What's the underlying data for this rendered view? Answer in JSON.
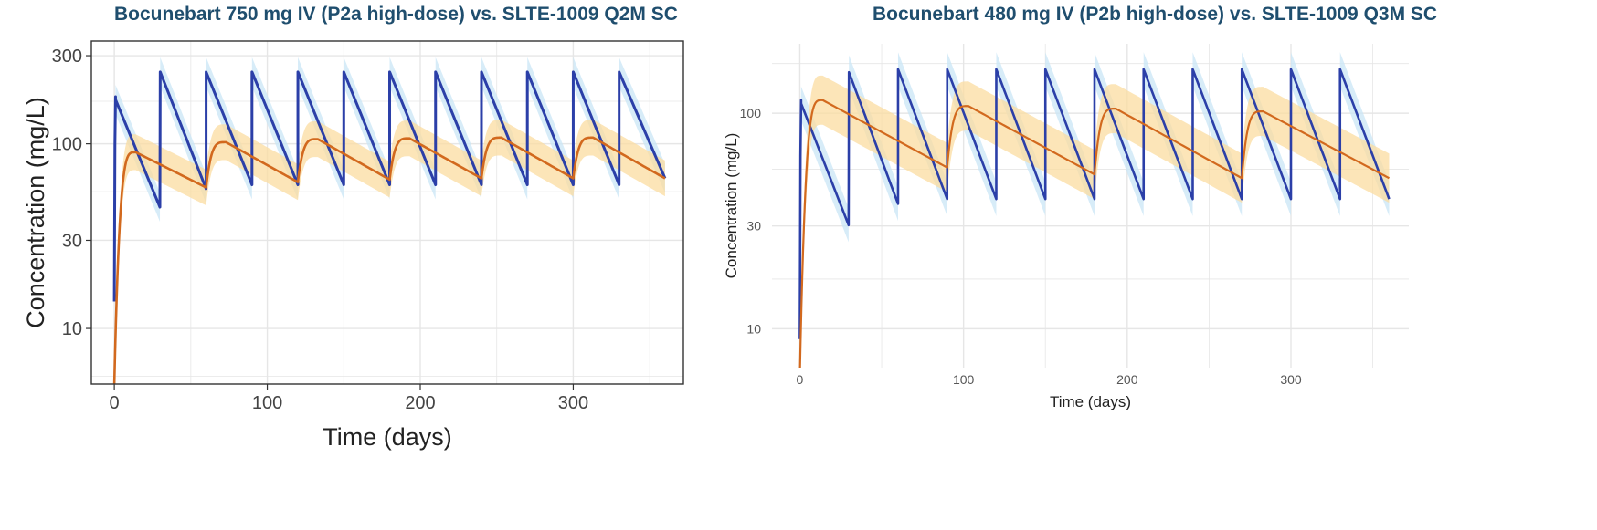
{
  "colors": {
    "iv_line": "#2b3fa8",
    "iv_band": "#c9e6f5",
    "sc_line": "#d2691e",
    "sc_band": "#fbdca0",
    "title": "#1f4e6e",
    "grid": "#e6e6e6",
    "axis_text": "#555555"
  },
  "chart_data": [
    {
      "type": "line",
      "title": "Bocunebart 750 mg IV (P2a high-dose) vs. SLTE-1009 Q2M SC",
      "xlabel": "Time (days)",
      "ylabel": "Concentration (mg/L)",
      "xlim": [
        -15,
        372
      ],
      "ylim": [
        5,
        360
      ],
      "yscale": "log",
      "xticks": [
        0,
        100,
        200,
        300
      ],
      "xtick_labels": [
        "0",
        "100",
        "200",
        "300"
      ],
      "yticks": [
        10,
        30,
        100,
        300
      ],
      "ytick_labels": [
        "10",
        "30",
        "100",
        "300"
      ],
      "grid": true,
      "border": true,
      "series": [
        {
          "key": "iv",
          "dose_interval": 30,
          "end_day": 360,
          "first_peak": 180,
          "first_trough": 45,
          "peaks": [
            180,
            245,
            245,
            245,
            245,
            245,
            245,
            245,
            245,
            245,
            245,
            245
          ],
          "troughs": [
            45,
            57,
            60,
            60,
            60,
            60,
            60,
            60,
            60,
            60,
            60,
            65
          ],
          "band_factor": 1.2
        },
        {
          "key": "sc",
          "dose_interval": 60,
          "end_day": 360,
          "onset": 5,
          "peaks": [
            90,
            102,
            106,
            107,
            108,
            108
          ],
          "peak_days": [
            14,
            73,
            133,
            193,
            253,
            313
          ],
          "troughs": [
            58,
            62,
            64,
            65,
            65,
            65
          ],
          "band_factor": 1.25
        }
      ]
    },
    {
      "type": "line",
      "title": "Bocunebart 480 mg IV (P2b high-dose) vs. SLTE-1009 Q3M SC",
      "xlabel": "Time (days)",
      "ylabel": "Concentration (mg/L)",
      "xlim": [
        -17,
        372
      ],
      "ylim": [
        6.6,
        210
      ],
      "yscale": "log",
      "xticks": [
        0,
        100,
        200,
        300
      ],
      "xtick_labels": [
        "0",
        "100",
        "200",
        "300"
      ],
      "yticks": [
        10,
        30,
        100
      ],
      "ytick_labels": [
        "10",
        "30",
        "100"
      ],
      "grid": true,
      "border": false,
      "series": [
        {
          "key": "iv",
          "dose_interval": 30,
          "end_day": 360,
          "first_peak": 115,
          "first_trough": 30,
          "peaks": [
            115,
            155,
            160,
            160,
            160,
            160,
            160,
            160,
            160,
            160,
            160,
            160
          ],
          "troughs": [
            30,
            38,
            40,
            40,
            40,
            40,
            40,
            40,
            40,
            40,
            40,
            40
          ],
          "band_factor": 1.2
        },
        {
          "key": "sc",
          "dose_interval": 90,
          "end_day": 360,
          "onset": 6,
          "peaks": [
            115,
            108,
            105,
            102
          ],
          "peak_days": [
            14,
            103,
            193,
            283
          ],
          "troughs": [
            56,
            52,
            50,
            50
          ],
          "band_factor": 1.3
        }
      ]
    }
  ]
}
